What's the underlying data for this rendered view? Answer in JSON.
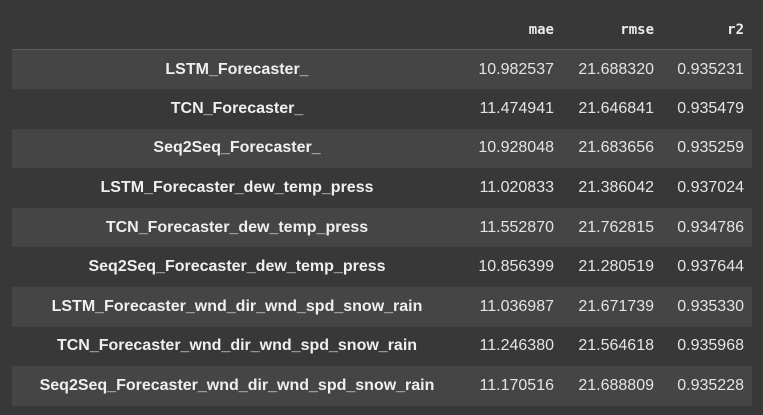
{
  "table": {
    "columns": [
      "",
      "mae",
      "rmse",
      "r2"
    ],
    "rows": [
      {
        "name": "LSTM_Forecaster_",
        "mae": "10.982537",
        "rmse": "21.688320",
        "r2": "0.935231"
      },
      {
        "name": "TCN_Forecaster_",
        "mae": "11.474941",
        "rmse": "21.646841",
        "r2": "0.935479"
      },
      {
        "name": "Seq2Seq_Forecaster_",
        "mae": "10.928048",
        "rmse": "21.683656",
        "r2": "0.935259"
      },
      {
        "name": "LSTM_Forecaster_dew_temp_press",
        "mae": "11.020833",
        "rmse": "21.386042",
        "r2": "0.937024"
      },
      {
        "name": "TCN_Forecaster_dew_temp_press",
        "mae": "11.552870",
        "rmse": "21.762815",
        "r2": "0.934786"
      },
      {
        "name": "Seq2Seq_Forecaster_dew_temp_press",
        "mae": "10.856399",
        "rmse": "21.280519",
        "r2": "0.937644"
      },
      {
        "name": "LSTM_Forecaster_wnd_dir_wnd_spd_snow_rain",
        "mae": "11.036987",
        "rmse": "21.671739",
        "r2": "0.935330"
      },
      {
        "name": "TCN_Forecaster_wnd_dir_wnd_spd_snow_rain",
        "mae": "11.246380",
        "rmse": "21.564618",
        "r2": "0.935968"
      },
      {
        "name": "Seq2Seq_Forecaster_wnd_dir_wnd_spd_snow_rain",
        "mae": "11.170516",
        "rmse": "21.688809",
        "r2": "0.935228"
      }
    ]
  }
}
